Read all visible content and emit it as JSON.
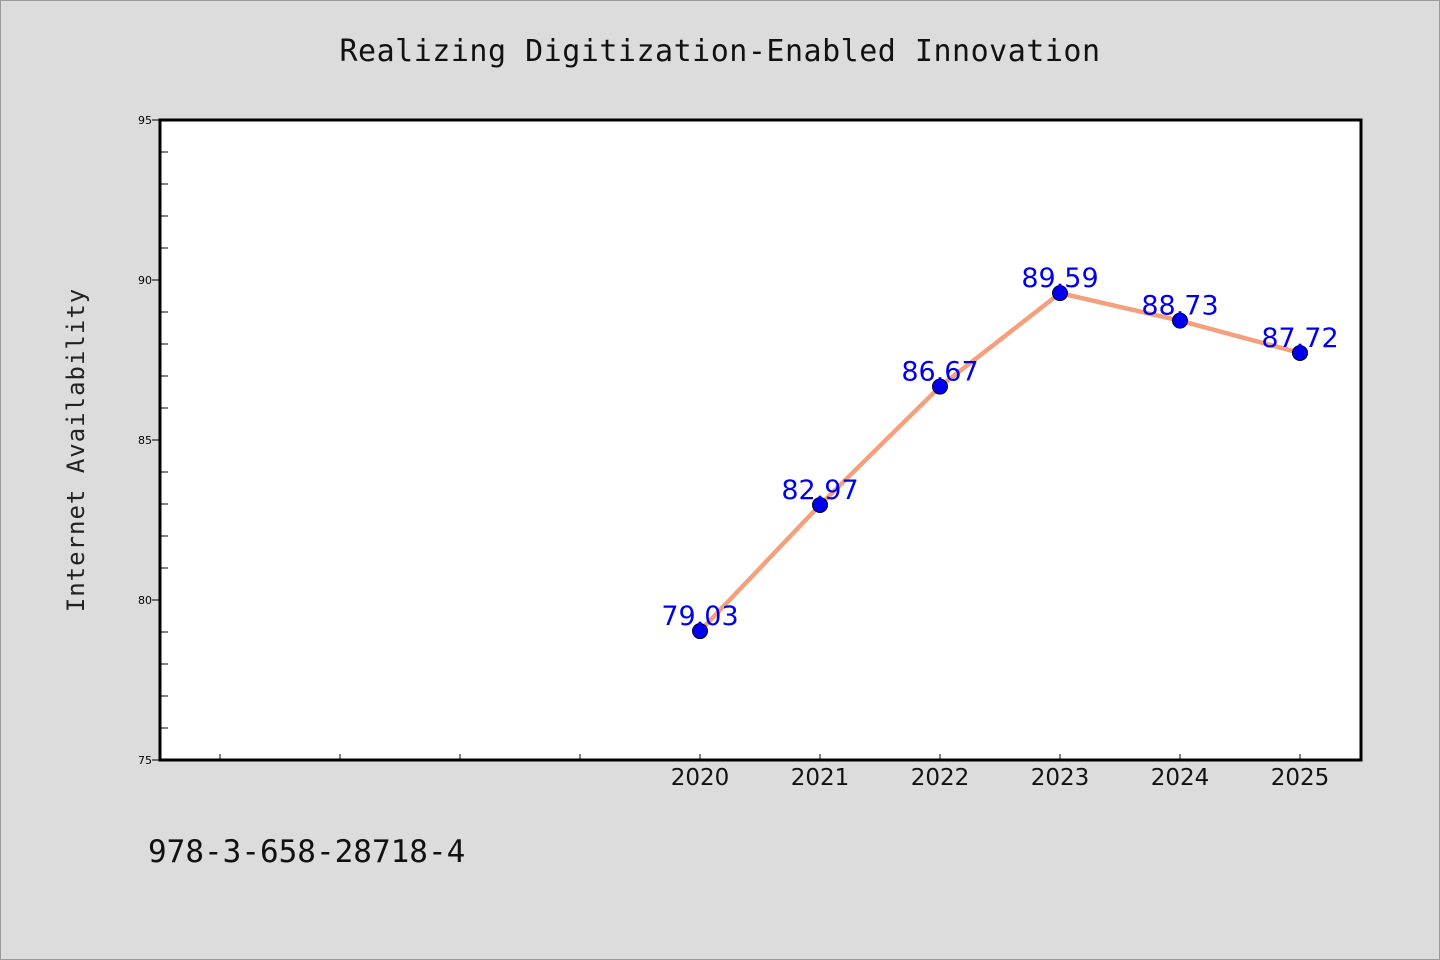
{
  "chart_data": {
    "type": "line",
    "title": "Realizing Digitization-Enabled Innovation",
    "xlabel": "",
    "ylabel": "Internet Availability",
    "x": [
      "2020",
      "2021",
      "2022",
      "2023",
      "2024",
      "2025"
    ],
    "series": [
      {
        "values": [
          79.03,
          82.97,
          86.67,
          89.59,
          88.73,
          87.72
        ],
        "line_color": "#f4a07c",
        "marker_color": "#0000ee"
      }
    ],
    "data_labels": [
      "79.03",
      "82.97",
      "86.67",
      "89.59",
      "88.73",
      "87.72"
    ],
    "ylim": [
      75,
      95
    ],
    "yticks": [
      "75",
      "80",
      "85",
      "90",
      "95"
    ],
    "grid": false,
    "legend": "none"
  },
  "footer": {
    "isbn": "978-3-658-28718-4"
  },
  "colors": {
    "background": "#dcdcdc",
    "plot_background": "#ffffff",
    "line": "#f4a07c",
    "marker": "#0000ee",
    "label": "#0000ee"
  }
}
